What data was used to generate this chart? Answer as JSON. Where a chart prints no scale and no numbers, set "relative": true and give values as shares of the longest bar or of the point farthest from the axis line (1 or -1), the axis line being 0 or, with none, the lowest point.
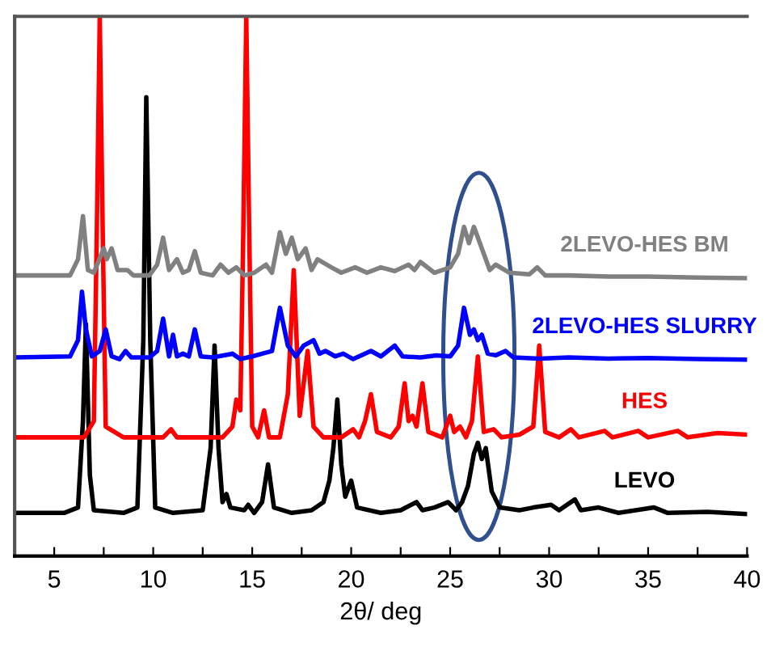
{
  "chart_data": {
    "type": "line",
    "relative": true,
    "xlabel": "2θ/ deg",
    "xlim": [
      3,
      40
    ],
    "xticks": [
      5,
      {
        "value": 7.5,
        "label": null
      },
      10,
      {
        "value": 12.5,
        "label": null
      },
      15,
      {
        "value": 17.5,
        "label": null
      },
      20,
      {
        "value": 22.5,
        "label": null
      },
      25,
      {
        "value": 27.5,
        "label": null
      },
      30,
      {
        "value": 32.5,
        "label": null
      },
      35,
      {
        "value": 37.5,
        "label": null
      },
      40
    ],
    "tick_labels": "x",
    "grid": false,
    "legend": false,
    "marker": "none",
    "line_style": "solid",
    "series": [
      {
        "name": "LEVO",
        "color": "#000000",
        "x": [
          3.0,
          5.5,
          6.2,
          6.45,
          6.6,
          6.8,
          7.0,
          8.5,
          9.2,
          9.5,
          9.65,
          9.85,
          10.1,
          11,
          12.5,
          12.9,
          13.1,
          13.3,
          13.5,
          13.7,
          13.9,
          14.6,
          14.8,
          15.1,
          15.5,
          15.8,
          16.1,
          17,
          18,
          18.6,
          18.9,
          19.1,
          19.3,
          19.5,
          19.7,
          20.0,
          20.3,
          21.5,
          22.5,
          23.3,
          23.6,
          24.2,
          24.9,
          25.3,
          25.6,
          25.9,
          26.2,
          26.4,
          26.6,
          26.8,
          27.1,
          27.5,
          28.5,
          29.2,
          30.1,
          30.5,
          31.3,
          31.6,
          32.5,
          33.5,
          35.3,
          36,
          38,
          40
        ],
        "values": [
          0.08,
          0.08,
          0.09,
          0.25,
          0.43,
          0.15,
          0.085,
          0.08,
          0.09,
          0.4,
          0.85,
          0.4,
          0.09,
          0.08,
          0.085,
          0.2,
          0.39,
          0.2,
          0.1,
          0.115,
          0.09,
          0.085,
          0.095,
          0.08,
          0.1,
          0.17,
          0.09,
          0.08,
          0.085,
          0.1,
          0.14,
          0.2,
          0.29,
          0.17,
          0.11,
          0.14,
          0.09,
          0.08,
          0.085,
          0.1,
          0.085,
          0.09,
          0.1,
          0.085,
          0.1,
          0.13,
          0.19,
          0.21,
          0.18,
          0.2,
          0.12,
          0.09,
          0.085,
          0.09,
          0.095,
          0.085,
          0.105,
          0.085,
          0.09,
          0.08,
          0.09,
          0.08,
          0.082,
          0.078
        ]
      },
      {
        "name": "HES",
        "color": "#ff0000",
        "x": [
          3.0,
          6.5,
          7.0,
          7.15,
          7.3,
          7.45,
          7.6,
          8.5,
          10.5,
          10.9,
          11.2,
          13.5,
          14.0,
          14.2,
          14.4,
          14.55,
          14.7,
          14.85,
          15.0,
          15.3,
          15.6,
          15.85,
          16.4,
          16.8,
          17.1,
          17.4,
          17.8,
          18.1,
          18.6,
          19.5,
          20.1,
          20.4,
          20.7,
          21.0,
          21.3,
          22.0,
          22.4,
          22.7,
          22.9,
          23.1,
          23.3,
          23.6,
          23.9,
          24.6,
          25.0,
          25.2,
          25.5,
          25.8,
          26.1,
          26.4,
          26.7,
          27.2,
          27.6,
          28.5,
          29.2,
          29.5,
          29.8,
          30.5,
          31.1,
          31.5,
          32.8,
          33.2,
          34.5,
          35.0,
          36.5,
          37.0,
          38.5,
          40
        ],
        "values": [
          0.22,
          0.22,
          0.25,
          0.6,
          1,
          0.6,
          0.24,
          0.22,
          0.22,
          0.235,
          0.22,
          0.22,
          0.24,
          0.29,
          0.27,
          0.6,
          1,
          0.6,
          0.24,
          0.22,
          0.27,
          0.22,
          0.22,
          0.3,
          0.53,
          0.26,
          0.38,
          0.24,
          0.22,
          0.22,
          0.235,
          0.22,
          0.25,
          0.3,
          0.23,
          0.22,
          0.24,
          0.32,
          0.25,
          0.26,
          0.24,
          0.32,
          0.23,
          0.22,
          0.26,
          0.23,
          0.24,
          0.22,
          0.25,
          0.37,
          0.23,
          0.235,
          0.22,
          0.225,
          0.24,
          0.39,
          0.23,
          0.22,
          0.235,
          0.22,
          0.232,
          0.22,
          0.232,
          0.22,
          0.232,
          0.22,
          0.228,
          0.225
        ]
      },
      {
        "name": "2LEVO-HES SLURRY",
        "color": "#0000ff",
        "x": [
          3.0,
          5.8,
          6.2,
          6.4,
          6.6,
          6.9,
          7.3,
          7.6,
          7.9,
          8.3,
          8.6,
          8.9,
          9.8,
          10.2,
          10.5,
          10.8,
          11.0,
          11.2,
          11.5,
          11.8,
          12.1,
          12.4,
          13.0,
          14.0,
          14.4,
          15.0,
          15.5,
          16.0,
          16.4,
          16.8,
          17.2,
          17.6,
          18.1,
          18.4,
          18.7,
          19.2,
          19.6,
          20.1,
          21.0,
          21.5,
          22.2,
          22.6,
          23.5,
          24.3,
          25.0,
          25.4,
          25.7,
          26.0,
          26.2,
          26.4,
          26.6,
          26.9,
          27.3,
          27.8,
          28.2,
          29.5,
          31,
          33,
          35,
          37.5,
          40
        ],
        "values": [
          0.368,
          0.37,
          0.4,
          0.49,
          0.42,
          0.37,
          0.38,
          0.42,
          0.37,
          0.365,
          0.38,
          0.368,
          0.368,
          0.38,
          0.44,
          0.37,
          0.41,
          0.37,
          0.375,
          0.37,
          0.42,
          0.37,
          0.368,
          0.375,
          0.365,
          0.37,
          0.375,
          0.38,
          0.46,
          0.39,
          0.37,
          0.39,
          0.4,
          0.375,
          0.38,
          0.37,
          0.375,
          0.365,
          0.38,
          0.37,
          0.39,
          0.37,
          0.368,
          0.372,
          0.37,
          0.39,
          0.46,
          0.41,
          0.42,
          0.4,
          0.41,
          0.375,
          0.372,
          0.38,
          0.368,
          0.366,
          0.368,
          0.366,
          0.367,
          0.365,
          0.364
        ]
      },
      {
        "name": "2LEVO-HES BM",
        "color": "#808080",
        "x": [
          3.0,
          5.8,
          6.2,
          6.45,
          6.7,
          7.0,
          7.5,
          7.65,
          7.9,
          8.2,
          8.7,
          9.0,
          9.8,
          10.2,
          10.5,
          10.8,
          11.2,
          11.5,
          11.8,
          12.1,
          12.4,
          13.0,
          13.4,
          13.8,
          14.2,
          14.6,
          15.1,
          15.7,
          16.0,
          16.4,
          16.7,
          17.0,
          17.3,
          17.7,
          18.0,
          18.3,
          19.0,
          19.5,
          20.2,
          20.8,
          21.5,
          22.2,
          22.9,
          23.2,
          23.5,
          24.2,
          25.0,
          25.4,
          25.7,
          25.95,
          26.2,
          26.6,
          27.0,
          27.3,
          28.0,
          29.0,
          29.4,
          29.8,
          31,
          33,
          35,
          37.5,
          40
        ],
        "values": [
          0.52,
          0.52,
          0.55,
          0.63,
          0.53,
          0.525,
          0.57,
          0.55,
          0.57,
          0.53,
          0.53,
          0.52,
          0.52,
          0.54,
          0.59,
          0.53,
          0.55,
          0.525,
          0.53,
          0.565,
          0.525,
          0.52,
          0.54,
          0.525,
          0.535,
          0.52,
          0.525,
          0.54,
          0.525,
          0.6,
          0.56,
          0.59,
          0.55,
          0.57,
          0.53,
          0.55,
          0.535,
          0.525,
          0.535,
          0.525,
          0.535,
          0.528,
          0.54,
          0.53,
          0.545,
          0.525,
          0.535,
          0.56,
          0.61,
          0.58,
          0.61,
          0.57,
          0.53,
          0.54,
          0.525,
          0.522,
          0.535,
          0.52,
          0.52,
          0.518,
          0.518,
          0.516,
          0.515
        ]
      }
    ]
  }
}
